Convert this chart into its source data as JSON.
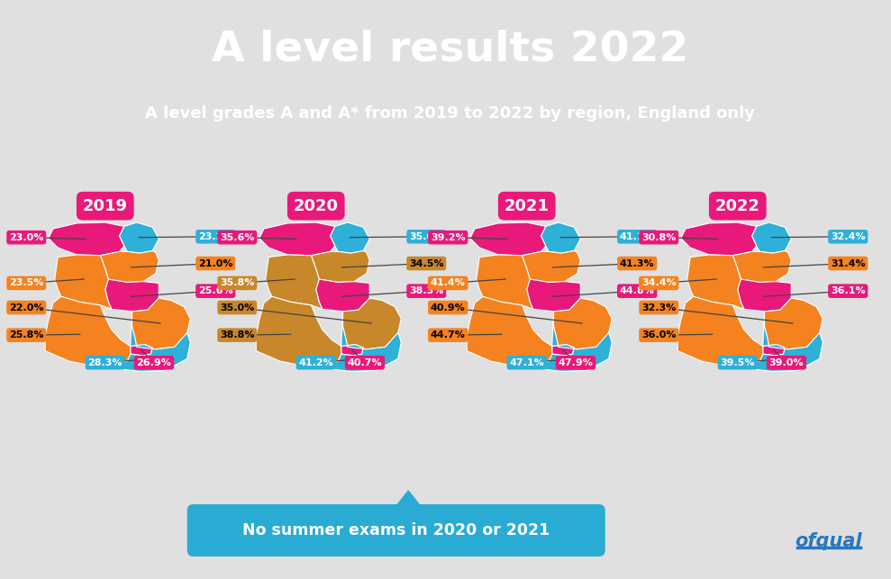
{
  "title": "A level results 2022",
  "subtitle": "A level grades A and A* from 2019 to 2022 by region, England only",
  "title_bg": "#E8197A",
  "subtitle_bg": "#2878BE",
  "main_bg": "#E0E0E0",
  "banner_color": "#29ABD4",
  "banner_text": "No summer exams in 2020 or 2021",
  "ofqual_color": "#2878BE",
  "year_label_bg": "#E8197A",
  "years": [
    "2019",
    "2020",
    "2021",
    "2022"
  ],
  "region_colors_2019": {
    "north_east": "#2EB0D8",
    "north_west": "#E8197A",
    "yorkshire": "#F4821F",
    "east_midlands": "#E8197A",
    "west_midlands": "#F4821F",
    "east": "#F4821F",
    "london": "#E8197A",
    "south_east": "#2EB0D8",
    "south_west": "#F4821F"
  },
  "region_colors_2020": {
    "north_east": "#2EB0D8",
    "north_west": "#E8197A",
    "yorkshire": "#C8872A",
    "east_midlands": "#E8197A",
    "west_midlands": "#C8872A",
    "east": "#C8872A",
    "london": "#E8197A",
    "south_east": "#2EB0D8",
    "south_west": "#C8872A"
  },
  "region_colors_2021": {
    "north_east": "#2EB0D8",
    "north_west": "#E8197A",
    "yorkshire": "#F4821F",
    "east_midlands": "#E8197A",
    "west_midlands": "#F4821F",
    "east": "#F4821F",
    "london": "#E8197A",
    "south_east": "#2EB0D8",
    "south_west": "#F4821F"
  },
  "region_colors_2022": {
    "north_east": "#2EB0D8",
    "north_west": "#E8197A",
    "yorkshire": "#F4821F",
    "east_midlands": "#E8197A",
    "west_midlands": "#F4821F",
    "east": "#F4821F",
    "london": "#E8197A",
    "south_east": "#2EB0D8",
    "south_west": "#F4821F"
  },
  "data_2019": {
    "north_east": "23.2%",
    "north_west": "23.0%",
    "yorkshire": "21.0%",
    "east_midlands": "25.6%",
    "west_midlands": "23.5%",
    "east": "22.0%",
    "london": "26.9%",
    "south_east": "28.3%",
    "south_west": "25.8%"
  },
  "data_2020": {
    "north_east": "35.0%",
    "north_west": "35.6%",
    "yorkshire": "34.5%",
    "east_midlands": "38.3%",
    "west_midlands": "35.8%",
    "east": "35.0%",
    "london": "40.7%",
    "south_east": "41.2%",
    "south_west": "38.8%"
  },
  "data_2021": {
    "north_east": "41.1%",
    "north_west": "39.2%",
    "yorkshire": "41.3%",
    "east_midlands": "44.8%",
    "west_midlands": "41.4%",
    "east": "40.9%",
    "london": "47.9%",
    "south_east": "47.1%",
    "south_west": "44.7%"
  },
  "data_2022": {
    "north_east": "32.4%",
    "north_west": "30.8%",
    "yorkshire": "31.4%",
    "east_midlands": "36.1%",
    "west_midlands": "34.4%",
    "east": "32.3%",
    "london": "39.0%",
    "south_east": "39.5%",
    "south_west": "36.0%"
  },
  "label_text_colors": {
    "north_east": "white",
    "north_west": "white",
    "yorkshire": "black",
    "east_midlands": "white",
    "west_midlands": "white",
    "east": "black",
    "london": "white",
    "south_east": "white",
    "south_west": "black"
  }
}
